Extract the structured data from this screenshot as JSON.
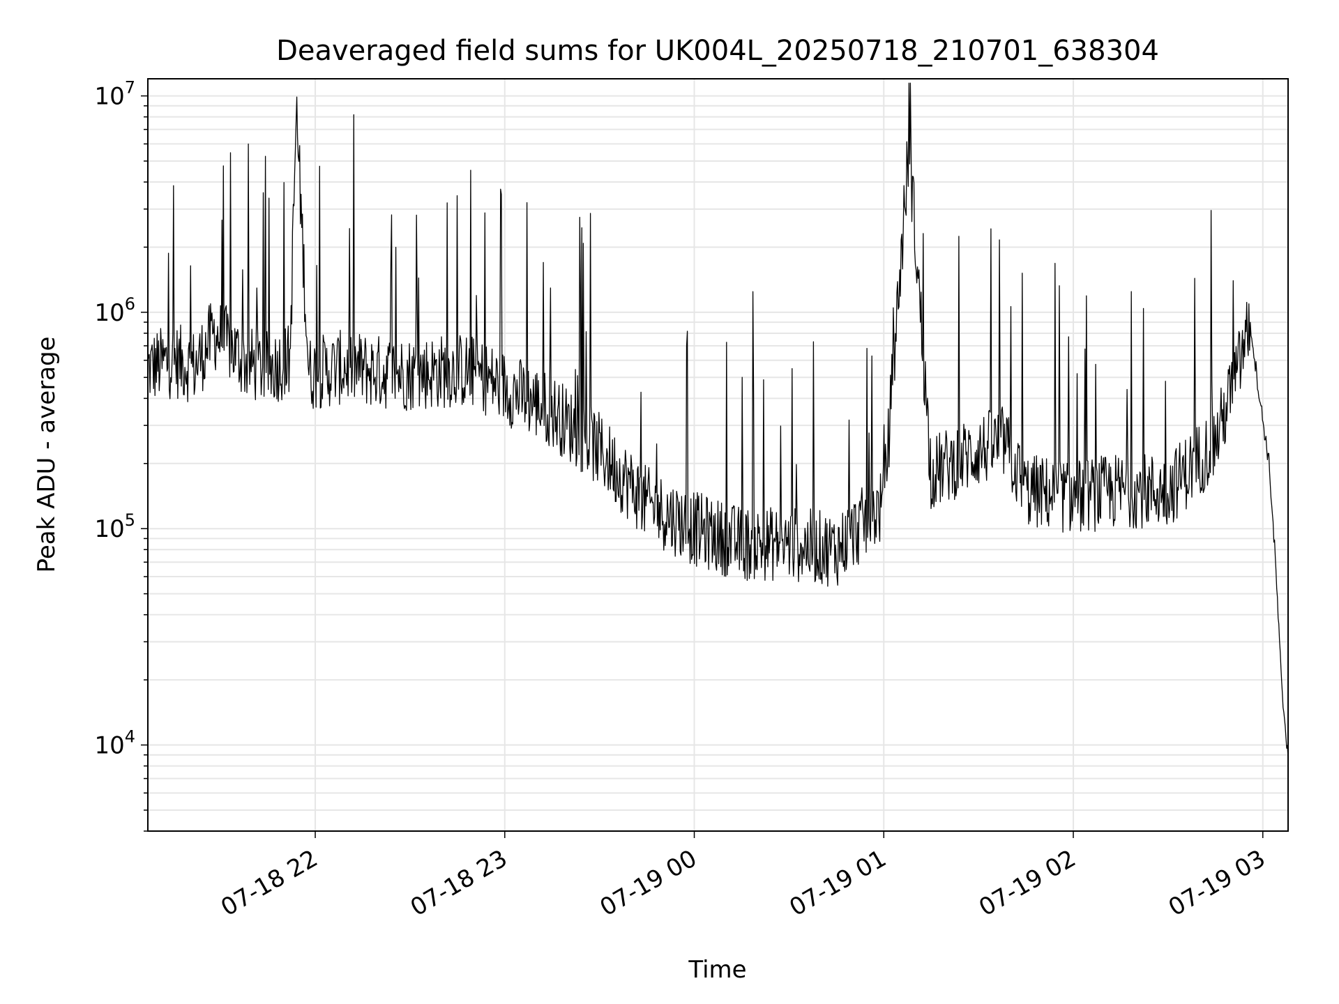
{
  "chart_data": {
    "type": "line",
    "title": "Deaveraged field sums for UK004L_20250718_210701_638304",
    "xlabel": "Time",
    "ylabel": "Peak ADU - average",
    "yscale": "log",
    "grid": "on (major and minor)",
    "line_color": "#000000",
    "xlim": [
      "2025-07-18 21:07",
      "2025-07-19 03:08"
    ],
    "ylim": [
      4000,
      12000000
    ],
    "x_ticks": [
      {
        "value": "2025-07-18 22:00",
        "label": "07-18 22"
      },
      {
        "value": "2025-07-18 23:00",
        "label": "07-18 23"
      },
      {
        "value": "2025-07-19 00:00",
        "label": "07-19 00"
      },
      {
        "value": "2025-07-19 01:00",
        "label": "07-19 01"
      },
      {
        "value": "2025-07-19 02:00",
        "label": "07-19 02"
      },
      {
        "value": "2025-07-19 03:00",
        "label": "07-19 03"
      }
    ],
    "y_ticks": [
      {
        "value": 10000,
        "base": "10",
        "exp": "4"
      },
      {
        "value": 100000,
        "base": "10",
        "exp": "5"
      },
      {
        "value": 1000000,
        "base": "10",
        "exp": "6"
      },
      {
        "value": 10000000,
        "base": "10",
        "exp": "7"
      }
    ],
    "series": [
      {
        "x": [
          "2025-07-18 21:07",
          "2025-07-18 21:15",
          "2025-07-18 21:22",
          "2025-07-18 21:28",
          "2025-07-18 21:33",
          "2025-07-18 21:38",
          "2025-07-18 21:45",
          "2025-07-18 21:52",
          "2025-07-18 21:54",
          "2025-07-18 21:58",
          "2025-07-18 22:10",
          "2025-07-18 22:20",
          "2025-07-18 22:30",
          "2025-07-18 22:45",
          "2025-07-18 22:50",
          "2025-07-18 23:00",
          "2025-07-18 23:15",
          "2025-07-18 23:30",
          "2025-07-18 23:45",
          "2025-07-19 00:00",
          "2025-07-19 00:15",
          "2025-07-19 00:30",
          "2025-07-19 00:45",
          "2025-07-19 01:00",
          "2025-07-19 01:08",
          "2025-07-19 01:15",
          "2025-07-19 01:30",
          "2025-07-19 01:38",
          "2025-07-19 01:45",
          "2025-07-19 02:00",
          "2025-07-19 02:15",
          "2025-07-19 02:30",
          "2025-07-19 02:45",
          "2025-07-19 02:53",
          "2025-07-19 02:56",
          "2025-07-19 02:59",
          "2025-07-19 03:02",
          "2025-07-19 03:04",
          "2025-07-19 03:06",
          "2025-07-19 03:08"
        ],
        "values": [
          550000,
          600000,
          560000,
          800000,
          700000,
          580000,
          550000,
          600000,
          8500000,
          520000,
          560000,
          530000,
          520000,
          540000,
          530000,
          450000,
          350000,
          230000,
          130000,
          100000,
          85000,
          85000,
          80000,
          130000,
          6000000,
          180000,
          230000,
          250000,
          150000,
          140000,
          150000,
          150000,
          250000,
          600000,
          900000,
          400000,
          200000,
          70000,
          18000,
          9000
        ]
      }
    ]
  }
}
